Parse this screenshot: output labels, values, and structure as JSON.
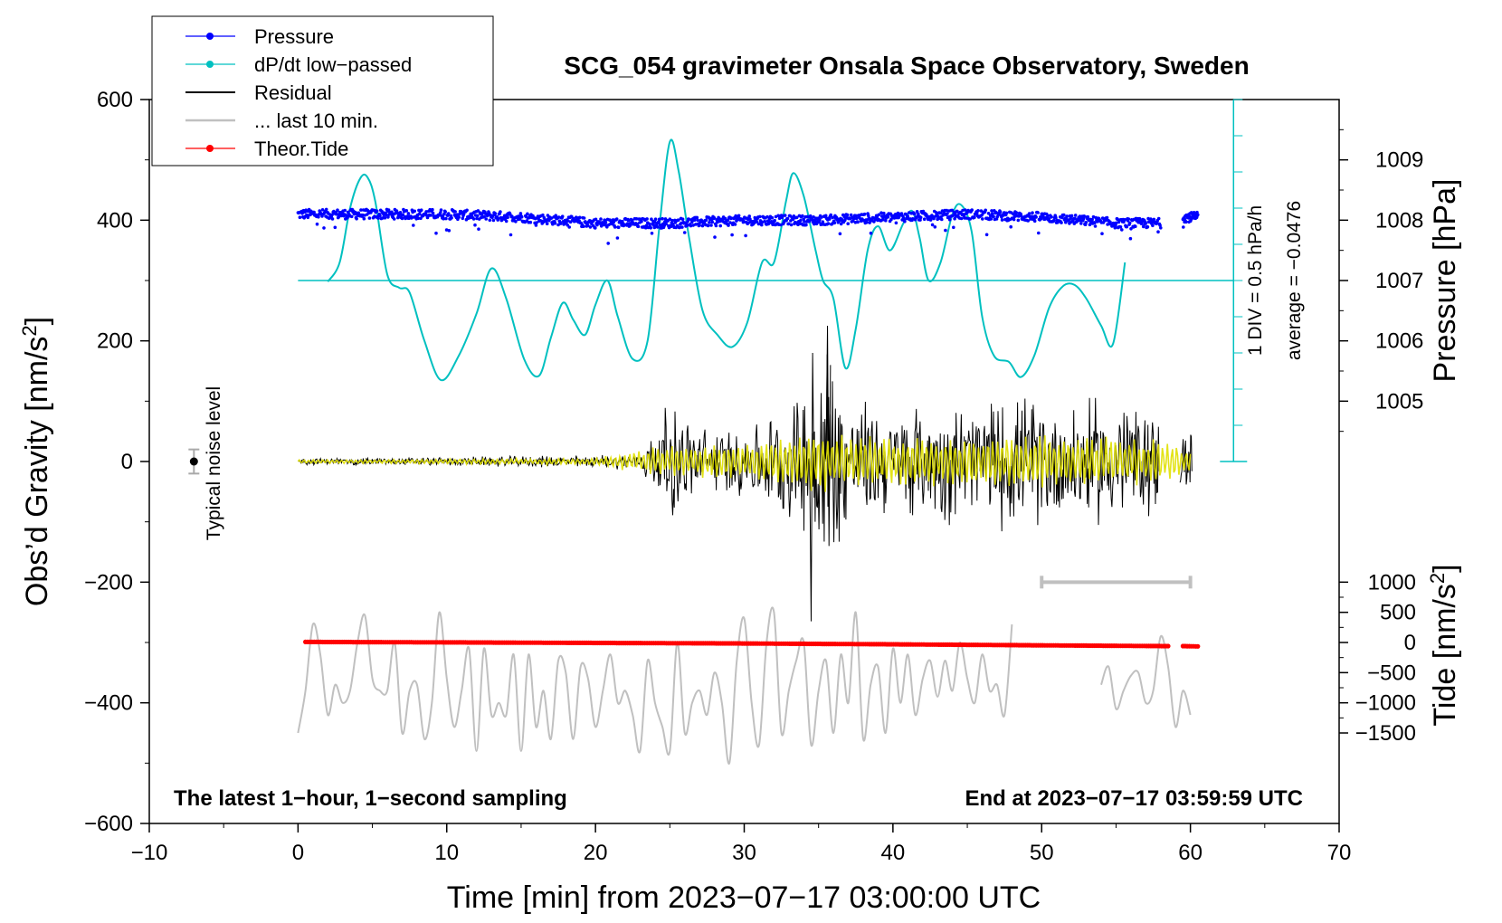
{
  "chart_data": {
    "type": "line",
    "title": "SCG_054 gravimeter Onsala Space Observatory, Sweden",
    "xlabel": "Time [min] from 2023−07−17 03:00:00 UTC",
    "ylabel_left": "Obs’d Gravity [nm/s²]",
    "ylabel_left_text": "Obs’d Gravity [nm/s",
    "ylabel_left_sup": "2",
    "ylabel_left_close": "]",
    "ylabel_right_top": "Pressure [hPa]",
    "ylabel_right_bottom_text": "Tide [nm/s",
    "ylabel_right_bottom_sup": "2",
    "ylabel_right_bottom_close": "]",
    "xlim": [
      -10,
      70
    ],
    "ylim": [
      -600,
      600
    ],
    "x_ticks": [
      -10,
      0,
      10,
      20,
      30,
      40,
      50,
      60,
      70
    ],
    "x_tick_labels": [
      "−10",
      "0",
      "10",
      "20",
      "30",
      "40",
      "50",
      "60",
      "70"
    ],
    "y_ticks": [
      -600,
      -400,
      -200,
      0,
      200,
      400,
      600
    ],
    "y_tick_labels": [
      "−600",
      "−400",
      "−200",
      "0",
      "200",
      "400",
      "600"
    ],
    "pressure_axis": {
      "ticks": [
        1005,
        1006,
        1007,
        1008,
        1009
      ],
      "tick_labels": [
        "1005",
        "1006",
        "1007",
        "1008",
        "1009"
      ],
      "mapping": {
        "hpa_1007_at_gravity": 300,
        "gravity_per_hpa": 100
      }
    },
    "tide_axis": {
      "ticks": [
        -1500,
        -1000,
        -500,
        0,
        500,
        1000
      ],
      "tick_labels": [
        "−1500",
        "−1000",
        "−500",
        "0",
        "500",
        "1000"
      ],
      "mapping": {
        "tide_0_at_gravity": -300,
        "gravity_per_tide": 0.1
      }
    },
    "legend": [
      {
        "label": "Pressure",
        "color": "#0000ff",
        "marker": "dot"
      },
      {
        "label": "dP/dt low−passed",
        "color": "#00c0c0",
        "marker": "dot"
      },
      {
        "label": "Residual",
        "color": "#000000",
        "marker": "line"
      },
      {
        "label": "... last 10 min.",
        "color": "#c0c0c0",
        "marker": "line"
      },
      {
        "label": "Theor.Tide",
        "color": "#ff0000",
        "marker": "dot"
      }
    ],
    "series": [
      {
        "name": "Pressure",
        "units": "hPa",
        "color": "#0000ff",
        "x": [
          0,
          5,
          10,
          15,
          20,
          25,
          30,
          35,
          40,
          45,
          50,
          55,
          58
        ],
        "values": [
          1008.1,
          1008.1,
          1008.1,
          1008.05,
          1007.95,
          1007.95,
          1008.0,
          1008.0,
          1008.05,
          1008.1,
          1008.05,
          1007.95,
          1007.95
        ]
      },
      {
        "name": "Pressure (after gap)",
        "units": "hPa",
        "color": "#0000ff",
        "x": [
          59.5,
          60,
          60.5
        ],
        "values": [
          1008.05,
          1008.05,
          1008.05
        ]
      },
      {
        "name": "dP/dt low-passed",
        "units": "nm/s2-scaled",
        "color": "#00c0c0",
        "x": [
          2,
          2.8,
          3.5,
          4.2,
          4.7,
          5.2,
          6.0,
          6.8,
          7.5,
          8.5,
          9.6,
          10.8,
          12.0,
          13.0,
          14.0,
          15.2,
          16.2,
          17.0,
          17.8,
          18.5,
          19.3,
          20.0,
          20.8,
          21.5,
          22.5,
          23.5,
          24.3,
          25.0,
          25.6,
          26.3,
          27.2,
          28.2,
          29.2,
          30.2,
          31.2,
          32.0,
          32.8,
          33.3,
          34.0,
          34.8,
          35.3,
          36.0,
          36.8,
          37.5,
          38.3,
          39.0,
          39.8,
          40.7,
          41.3,
          41.8,
          42.4,
          43.2,
          44.0,
          44.6,
          45.3,
          46.0,
          46.8,
          47.8,
          48.6,
          49.5,
          50.5,
          51.4,
          52.2,
          53.0,
          54.0,
          54.8,
          55.6
        ],
        "values": [
          298,
          330,
          420,
          470,
          470,
          430,
          310,
          288,
          280,
          200,
          135,
          175,
          245,
          320,
          270,
          170,
          142,
          205,
          263,
          235,
          210,
          260,
          300,
          240,
          170,
          200,
          390,
          530,
          480,
          370,
          250,
          210,
          190,
          230,
          330,
          330,
          430,
          478,
          440,
          350,
          300,
          270,
          155,
          220,
          350,
          390,
          350,
          395,
          415,
          370,
          300,
          330,
          410,
          425,
          380,
          240,
          175,
          165,
          140,
          175,
          255,
          290,
          293,
          270,
          225,
          195,
          330
        ]
      },
      {
        "name": "Residual",
        "units": "nm/s2",
        "color": "#000000",
        "description_envelope": {
          "x": [
            0,
            10,
            20,
            23,
            25,
            27,
            29,
            31,
            33,
            34.5,
            35.5,
            37,
            40,
            44,
            48,
            52,
            55,
            58,
            59.5,
            60
          ],
          "amplitude": [
            6,
            8,
            12,
            15,
            110,
            65,
            60,
            75,
            100,
            160,
            240,
            120,
            95,
            110,
            120,
            110,
            120,
            95,
            50,
            60
          ]
        }
      },
      {
        "name": "Residual (yellow, filtered)",
        "units": "nm/s2",
        "color": "#e0e000",
        "description_envelope": {
          "x": [
            0,
            20,
            24,
            30,
            35,
            40,
            50,
            58,
            60
          ],
          "amplitude": [
            3,
            6,
            25,
            30,
            55,
            40,
            45,
            40,
            20
          ]
        }
      },
      {
        "name": "... last 10 min.",
        "units": "nm/s2",
        "color": "#c0c0c0",
        "x": [
          0,
          0.5,
          1.0,
          1.5,
          2.0,
          2.5,
          3.0,
          3.5,
          4.0,
          4.5,
          5.0,
          5.5,
          6.0,
          6.5,
          7.0,
          7.5,
          8.0,
          8.5,
          9.0,
          9.5,
          10.0,
          10.5,
          11.0,
          11.5,
          12.0,
          12.5,
          13.0,
          13.5,
          14.0,
          14.5,
          15.0,
          15.5,
          16.0,
          16.5,
          17.0,
          17.5,
          18.0,
          18.5,
          19.0,
          19.5,
          20.0,
          20.5,
          21.0,
          21.5,
          22.0,
          22.5,
          23.0,
          23.5,
          24.0,
          24.5,
          25.0,
          25.5,
          26.0,
          26.5,
          27.0,
          27.5,
          28.0,
          28.5,
          29.0,
          29.5,
          30.0,
          30.5,
          31.0,
          31.5,
          32.0,
          32.5,
          33.0,
          33.5,
          34.0,
          34.5,
          35.0,
          35.5,
          36.0,
          36.5,
          37.0,
          37.5,
          38.0,
          38.5,
          39.0,
          39.5,
          40.0,
          40.5,
          41.0,
          41.5,
          42.0,
          42.5,
          43.0,
          43.5,
          44.0,
          44.5,
          45.0,
          45.5,
          46.0,
          46.5,
          47.0,
          47.5,
          48.0
        ],
        "values": [
          -450,
          -380,
          -270,
          -320,
          -420,
          -370,
          -400,
          -380,
          -300,
          -255,
          -360,
          -380,
          -380,
          -300,
          -450,
          -380,
          -370,
          -460,
          -400,
          -250,
          -360,
          -440,
          -380,
          -310,
          -480,
          -310,
          -420,
          -400,
          -420,
          -320,
          -480,
          -320,
          -440,
          -380,
          -460,
          -330,
          -350,
          -460,
          -340,
          -360,
          -440,
          -380,
          -320,
          -400,
          -380,
          -420,
          -480,
          -330,
          -400,
          -440,
          -480,
          -300,
          -450,
          -400,
          -380,
          -420,
          -350,
          -400,
          -500,
          -330,
          -260,
          -400,
          -470,
          -300,
          -250,
          -450,
          -380,
          -330,
          -300,
          -470,
          -380,
          -330,
          -450,
          -320,
          -400,
          -250,
          -460,
          -370,
          -340,
          -450,
          -310,
          -400,
          -320,
          -420,
          -360,
          -330,
          -390,
          -330,
          -380,
          -300,
          -360,
          -400,
          -320,
          -380,
          -370,
          -420,
          -270
        ]
      },
      {
        "name": "... last 10 min. (after gap)",
        "units": "nm/s2",
        "color": "#c0c0c0",
        "x": [
          54,
          54.5,
          55,
          55.5,
          56,
          56.5,
          57,
          57.5,
          58,
          58.5,
          59,
          59.5,
          60
        ],
        "values": [
          -370,
          -340,
          -410,
          -380,
          -355,
          -350,
          -400,
          -380,
          -290,
          -340,
          -440,
          -380,
          -420
        ]
      },
      {
        "name": "Theor.Tide",
        "units": "nm/s2",
        "color": "#ff0000",
        "x": [
          0.5,
          10,
          20,
          30,
          40,
          50,
          58.5
        ],
        "values": [
          9,
          2,
          -7,
          -16,
          -30,
          -47,
          -60
        ]
      },
      {
        "name": "Theor.Tide (after gap)",
        "units": "nm/s2",
        "color": "#ff0000",
        "x": [
          59.5,
          60.5
        ],
        "values": [
          -60,
          -65
        ]
      }
    ],
    "pressure_scale_bar": {
      "x_data": 62.9,
      "from_nm": 0,
      "to_nm": 600,
      "divisions": 10,
      "baseline_nm": 300,
      "label_div": "1 DIV = 0.5 hPa/h",
      "label_avg": "average = −0.0476"
    },
    "noise_marker": {
      "x": -7,
      "y": 0,
      "error": 20,
      "label": "Typical noise level"
    },
    "last10_bar": {
      "x_from": 50,
      "x_to": 60,
      "y": -200
    },
    "footer_left": "The latest 1−hour, 1−second sampling",
    "footer_right": "End at 2023−07−17 03:59:59 UTC",
    "colors": {
      "pressure": "#0000ff",
      "dpdt": "#00c0c0",
      "residual": "#000000",
      "residual_filtered": "#e0e000",
      "last10": "#c0c0c0",
      "tide": "#ff0000"
    }
  }
}
